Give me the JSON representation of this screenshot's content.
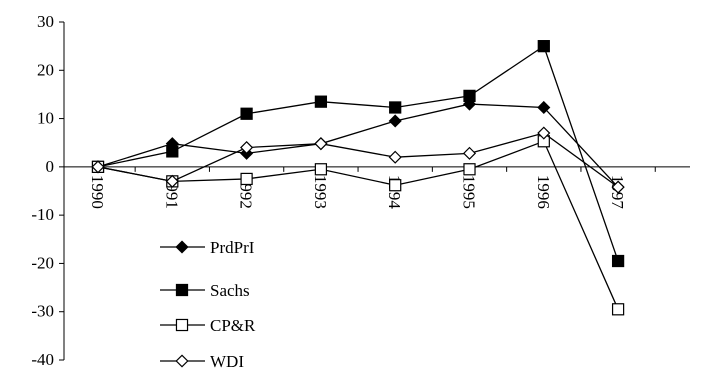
{
  "chart_data": {
    "type": "line",
    "title": "",
    "xlabel": "",
    "ylabel": "",
    "categories": [
      "1990",
      "1991",
      "1992",
      "1993",
      "1994",
      "1995",
      "1996",
      "1997"
    ],
    "ylim": [
      -40,
      30
    ],
    "yticks": [
      30,
      20,
      10,
      0,
      -10,
      -20,
      -30,
      -40
    ],
    "ytick_labels": [
      "30",
      "20",
      "10",
      "0",
      "-10",
      "-20",
      "-30",
      "-40"
    ],
    "grid": false,
    "legend_position": "bottom-left",
    "series": [
      {
        "name": "PrdPrI",
        "marker": "filled-diamond",
        "values": [
          0,
          4.8,
          2.8,
          4.8,
          9.5,
          13,
          12.3,
          -4.2
        ]
      },
      {
        "name": "Sachs",
        "marker": "filled-square",
        "values": [
          0,
          3.2,
          11,
          13.5,
          12.3,
          14.7,
          25,
          -19.5
        ]
      },
      {
        "name": "CP&R",
        "marker": "open-square",
        "values": [
          0,
          -3,
          -2.5,
          -0.5,
          -3.8,
          -0.5,
          5.3,
          -29.5
        ]
      },
      {
        "name": "WDI",
        "marker": "open-diamond",
        "values": [
          0,
          -3,
          4,
          4.8,
          2,
          2.8,
          7,
          -4.2
        ]
      }
    ]
  }
}
